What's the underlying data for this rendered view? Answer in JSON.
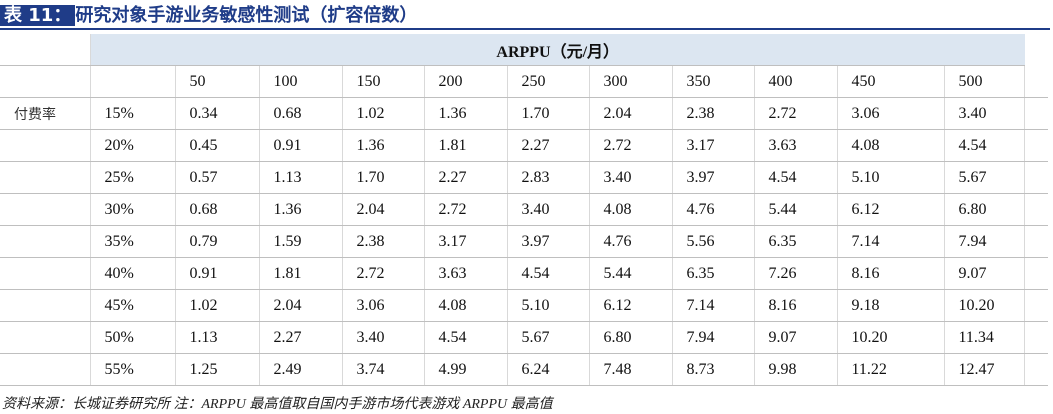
{
  "title": {
    "label": "表 11：",
    "text": "研究对象手游业务敏感性测试（扩容倍数）"
  },
  "table": {
    "header": "ARPPU（元/月）",
    "columns": [
      "50",
      "100",
      "150",
      "200",
      "250",
      "300",
      "350",
      "400",
      "450",
      "500"
    ],
    "row_label": "付费率",
    "rows": [
      {
        "rate": "15%",
        "values": [
          "0.34",
          "0.68",
          "1.02",
          "1.36",
          "1.70",
          "2.04",
          "2.38",
          "2.72",
          "3.06",
          "3.40"
        ]
      },
      {
        "rate": "20%",
        "values": [
          "0.45",
          "0.91",
          "1.36",
          "1.81",
          "2.27",
          "2.72",
          "3.17",
          "3.63",
          "4.08",
          "4.54"
        ]
      },
      {
        "rate": "25%",
        "values": [
          "0.57",
          "1.13",
          "1.70",
          "2.27",
          "2.83",
          "3.40",
          "3.97",
          "4.54",
          "5.10",
          "5.67"
        ]
      },
      {
        "rate": "30%",
        "values": [
          "0.68",
          "1.36",
          "2.04",
          "2.72",
          "3.40",
          "4.08",
          "4.76",
          "5.44",
          "6.12",
          "6.80"
        ]
      },
      {
        "rate": "35%",
        "values": [
          "0.79",
          "1.59",
          "2.38",
          "3.17",
          "3.97",
          "4.76",
          "5.56",
          "6.35",
          "7.14",
          "7.94"
        ]
      },
      {
        "rate": "40%",
        "values": [
          "0.91",
          "1.81",
          "2.72",
          "3.63",
          "4.54",
          "5.44",
          "6.35",
          "7.26",
          "8.16",
          "9.07"
        ]
      },
      {
        "rate": "45%",
        "values": [
          "1.02",
          "2.04",
          "3.06",
          "4.08",
          "5.10",
          "6.12",
          "7.14",
          "8.16",
          "9.18",
          "10.20"
        ]
      },
      {
        "rate": "50%",
        "values": [
          "1.13",
          "2.27",
          "3.40",
          "4.54",
          "5.67",
          "6.80",
          "7.94",
          "9.07",
          "10.20",
          "11.34"
        ]
      },
      {
        "rate": "55%",
        "values": [
          "1.25",
          "2.49",
          "3.74",
          "4.99",
          "6.24",
          "7.48",
          "8.73",
          "9.98",
          "11.22",
          "12.47"
        ]
      }
    ]
  },
  "source": "资料来源：长城证券研究所  注：ARPPU 最高值取自国内手游市场代表游戏 ARPPU 最高值"
}
